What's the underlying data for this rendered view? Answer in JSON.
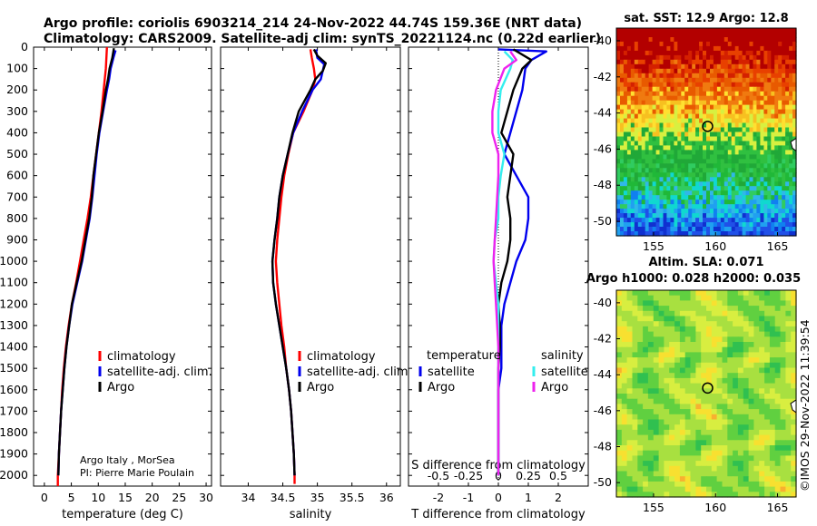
{
  "header": {
    "line1": "Argo profile: coriolis 6903214_214 24-Nov-2022 44.74S 159.36E (NRT data)",
    "line2": "Climatology: CARS2009. Satellite-adj clim: synTS_20221124.nc (0.22d earlier)"
  },
  "credits": {
    "line1": "Argo Italy , MorSea",
    "line2": "PI: Pierre Marie Poulain"
  },
  "imos_stamp": "©IMOS 29-Nov-2022 11:39:54",
  "colors": {
    "climatology": "#ff0000",
    "satellite": "#0000ee",
    "argo": "#000000",
    "sat_salinity": "#33eeee",
    "argo_salinity": "#ee22ee"
  },
  "chart_data": [
    {
      "type": "line",
      "xlabel": "temperature (deg C)",
      "x_ticks": [
        "0",
        "5",
        "10",
        "15",
        "20",
        "25",
        "30"
      ],
      "xlim": [
        -2,
        31
      ],
      "ylim": [
        0,
        2050
      ],
      "y_ticks": [
        "0",
        "100",
        "200",
        "300",
        "400",
        "500",
        "600",
        "700",
        "800",
        "900",
        "1000",
        "1100",
        "1200",
        "1300",
        "1400",
        "1500",
        "1600",
        "1700",
        "1800",
        "1900",
        "2000"
      ],
      "y_reversed": true,
      "legend": [
        "climatology",
        "satellite-adj. clim.",
        "Argo"
      ],
      "series": [
        {
          "name": "climatology",
          "color": "#ff0000",
          "values": [
            [
              11.6,
              0
            ],
            [
              11.5,
              50
            ],
            [
              11.4,
              100
            ],
            [
              11.2,
              150
            ],
            [
              11.0,
              200
            ],
            [
              10.6,
              300
            ],
            [
              10.1,
              400
            ],
            [
              9.6,
              500
            ],
            [
              9.1,
              600
            ],
            [
              8.6,
              700
            ],
            [
              8.0,
              800
            ],
            [
              7.3,
              900
            ],
            [
              6.6,
              1000
            ],
            [
              5.9,
              1100
            ],
            [
              5.1,
              1200
            ],
            [
              4.5,
              1300
            ],
            [
              4.0,
              1400
            ],
            [
              3.6,
              1500
            ],
            [
              3.3,
              1600
            ],
            [
              3.1,
              1700
            ],
            [
              2.9,
              1800
            ],
            [
              2.7,
              1900
            ],
            [
              2.5,
              2000
            ],
            [
              2.5,
              2050
            ]
          ]
        },
        {
          "name": "satellite-adj. clim.",
          "color": "#0000ee",
          "values": [
            [
              13.2,
              15
            ],
            [
              12.8,
              50
            ],
            [
              12.3,
              100
            ],
            [
              12.0,
              150
            ],
            [
              11.6,
              200
            ],
            [
              10.9,
              300
            ],
            [
              10.2,
              400
            ],
            [
              9.7,
              500
            ],
            [
              9.3,
              600
            ],
            [
              8.9,
              700
            ],
            [
              8.4,
              800
            ],
            [
              7.7,
              900
            ],
            [
              7.0,
              1000
            ],
            [
              6.1,
              1100
            ],
            [
              5.2,
              1200
            ],
            [
              4.6,
              1300
            ],
            [
              4.1,
              1400
            ],
            [
              3.7,
              1500
            ],
            [
              3.4,
              1600
            ],
            [
              3.1,
              1700
            ],
            [
              2.9,
              1800
            ],
            [
              2.7,
              1900
            ],
            [
              2.6,
              2000
            ]
          ]
        },
        {
          "name": "Argo",
          "color": "#000000",
          "values": [
            [
              12.9,
              5
            ],
            [
              12.6,
              50
            ],
            [
              12.1,
              100
            ],
            [
              11.8,
              150
            ],
            [
              11.4,
              200
            ],
            [
              10.8,
              300
            ],
            [
              10.1,
              400
            ],
            [
              9.6,
              500
            ],
            [
              9.1,
              600
            ],
            [
              8.8,
              700
            ],
            [
              8.3,
              800
            ],
            [
              7.6,
              900
            ],
            [
              6.9,
              1000
            ],
            [
              6.0,
              1100
            ],
            [
              5.1,
              1200
            ],
            [
              4.6,
              1300
            ],
            [
              4.1,
              1400
            ],
            [
              3.7,
              1500
            ],
            [
              3.4,
              1600
            ],
            [
              3.1,
              1700
            ],
            [
              2.9,
              1800
            ],
            [
              2.7,
              1900
            ],
            [
              2.6,
              2000
            ]
          ]
        }
      ]
    },
    {
      "type": "line",
      "xlabel": "salinity",
      "x_ticks": [
        "34",
        "34.5",
        "35",
        "35.5",
        "36"
      ],
      "xlim": [
        33.6,
        36.2
      ],
      "ylim": [
        0,
        2050
      ],
      "y_reversed": true,
      "legend": [
        "climatology",
        "satellite-adj. clim.",
        "Argo"
      ],
      "series": [
        {
          "name": "climatology",
          "color": "#ff0000",
          "values": [
            [
              34.9,
              10
            ],
            [
              34.92,
              50
            ],
            [
              34.95,
              100
            ],
            [
              34.97,
              150
            ],
            [
              34.93,
              200
            ],
            [
              34.8,
              300
            ],
            [
              34.65,
              400
            ],
            [
              34.58,
              500
            ],
            [
              34.52,
              600
            ],
            [
              34.48,
              700
            ],
            [
              34.45,
              800
            ],
            [
              34.42,
              900
            ],
            [
              34.4,
              1000
            ],
            [
              34.42,
              1100
            ],
            [
              34.45,
              1200
            ],
            [
              34.48,
              1300
            ],
            [
              34.52,
              1400
            ],
            [
              34.55,
              1500
            ],
            [
              34.59,
              1600
            ],
            [
              34.62,
              1700
            ],
            [
              34.64,
              1800
            ],
            [
              34.66,
              1900
            ],
            [
              34.67,
              2000
            ],
            [
              34.67,
              2040
            ]
          ]
        },
        {
          "name": "satellite-adj. clim.",
          "color": "#0000ee",
          "values": [
            [
              34.98,
              10
            ],
            [
              35.0,
              50
            ],
            [
              35.1,
              80
            ],
            [
              35.05,
              150
            ],
            [
              34.93,
              200
            ],
            [
              34.78,
              300
            ],
            [
              34.65,
              400
            ],
            [
              34.57,
              500
            ],
            [
              34.5,
              600
            ],
            [
              34.45,
              700
            ],
            [
              34.42,
              800
            ],
            [
              34.38,
              900
            ],
            [
              34.35,
              1000
            ],
            [
              34.36,
              1100
            ],
            [
              34.4,
              1200
            ],
            [
              34.45,
              1300
            ],
            [
              34.5,
              1400
            ],
            [
              34.55,
              1500
            ],
            [
              34.59,
              1600
            ],
            [
              34.62,
              1700
            ],
            [
              34.64,
              1800
            ],
            [
              34.66,
              1900
            ],
            [
              34.67,
              2000
            ]
          ]
        },
        {
          "name": "Argo",
          "color": "#000000",
          "values": [
            [
              34.95,
              10
            ],
            [
              35.0,
              40
            ],
            [
              35.12,
              75
            ],
            [
              35.08,
              110
            ],
            [
              34.97,
              150
            ],
            [
              34.9,
              200
            ],
            [
              34.73,
              300
            ],
            [
              34.64,
              400
            ],
            [
              34.57,
              500
            ],
            [
              34.5,
              600
            ],
            [
              34.45,
              700
            ],
            [
              34.42,
              800
            ],
            [
              34.38,
              900
            ],
            [
              34.35,
              1000
            ],
            [
              34.36,
              1100
            ],
            [
              34.4,
              1200
            ],
            [
              34.45,
              1300
            ],
            [
              34.5,
              1400
            ],
            [
              34.55,
              1500
            ],
            [
              34.59,
              1600
            ],
            [
              34.62,
              1700
            ],
            [
              34.64,
              1800
            ],
            [
              34.66,
              1900
            ],
            [
              34.67,
              2000
            ]
          ]
        }
      ]
    },
    {
      "type": "line",
      "xlabel": "T difference from climatology",
      "x_ticks": [
        "-2",
        "-1",
        "0",
        "1",
        "2"
      ],
      "xlim": [
        -3,
        3
      ],
      "x2label": "S difference from climatology",
      "x2_ticks": [
        "-0.5",
        "-0.25",
        "0",
        "0.25",
        "0.5"
      ],
      "x2lim": [
        -0.75,
        0.75
      ],
      "ylim": [
        0,
        2050
      ],
      "y_reversed": true,
      "legend_temperature_title": "temperature",
      "legend_salinity_title": "salinity",
      "legend": [
        "satellite",
        "Argo"
      ],
      "series": [
        {
          "name": "temperature satellite",
          "color": "#0000ee",
          "values": [
            [
              0,
              10
            ],
            [
              1.6,
              20
            ],
            [
              1.1,
              60
            ],
            [
              0.9,
              100
            ],
            [
              0.8,
              200
            ],
            [
              0.6,
              300
            ],
            [
              0.4,
              400
            ],
            [
              0.2,
              500
            ],
            [
              0.6,
              600
            ],
            [
              1.0,
              700
            ],
            [
              1.0,
              800
            ],
            [
              0.9,
              900
            ],
            [
              0.6,
              1000
            ],
            [
              0.4,
              1100
            ],
            [
              0.2,
              1200
            ],
            [
              0.1,
              1300
            ],
            [
              0.1,
              1400
            ],
            [
              0.1,
              1500
            ],
            [
              0,
              1600
            ],
            [
              0,
              1700
            ],
            [
              0,
              1800
            ],
            [
              0,
              1900
            ],
            [
              0,
              2000
            ]
          ]
        },
        {
          "name": "temperature Argo",
          "color": "#000000",
          "values": [
            [
              0.5,
              10
            ],
            [
              1.1,
              60
            ],
            [
              0.8,
              100
            ],
            [
              0.5,
              200
            ],
            [
              0.3,
              300
            ],
            [
              0.1,
              400
            ],
            [
              0.5,
              500
            ],
            [
              0.4,
              600
            ],
            [
              0.3,
              700
            ],
            [
              0.4,
              800
            ],
            [
              0.4,
              900
            ],
            [
              0.3,
              1000
            ],
            [
              0.1,
              1100
            ],
            [
              0,
              1200
            ],
            [
              0.05,
              1300
            ],
            [
              0.05,
              1400
            ],
            [
              0,
              1500
            ],
            [
              0,
              1600
            ],
            [
              0,
              1700
            ],
            [
              0,
              1800
            ],
            [
              0,
              1900
            ],
            [
              0,
              2000
            ]
          ]
        },
        {
          "name": "salinity satellite",
          "color": "#33eeee",
          "values": [
            [
              0.05,
              20
            ],
            [
              0.12,
              60
            ],
            [
              0.1,
              100
            ],
            [
              0.02,
              200
            ],
            [
              0,
              300
            ],
            [
              0,
              400
            ],
            [
              0.05,
              500
            ],
            [
              0.02,
              600
            ],
            [
              0,
              700
            ],
            [
              0,
              800
            ],
            [
              -0.03,
              900
            ],
            [
              -0.04,
              1000
            ],
            [
              -0.02,
              1100
            ],
            [
              0,
              1200
            ],
            [
              0,
              1300
            ],
            [
              0,
              1400
            ],
            [
              0,
              1500
            ],
            [
              0,
              1600
            ],
            [
              0,
              1700
            ],
            [
              0,
              1800
            ],
            [
              0,
              1900
            ],
            [
              0,
              2000
            ]
          ]
        },
        {
          "name": "salinity Argo",
          "color": "#ee22ee",
          "values": [
            [
              0.1,
              20
            ],
            [
              0.15,
              60
            ],
            [
              0.05,
              100
            ],
            [
              -0.02,
              200
            ],
            [
              -0.05,
              300
            ],
            [
              -0.05,
              400
            ],
            [
              0,
              500
            ],
            [
              0,
              600
            ],
            [
              -0.01,
              700
            ],
            [
              -0.02,
              800
            ],
            [
              -0.03,
              900
            ],
            [
              -0.04,
              1000
            ],
            [
              -0.03,
              1100
            ],
            [
              -0.02,
              1200
            ],
            [
              -0.01,
              1300
            ],
            [
              0,
              1400
            ],
            [
              0,
              1500
            ],
            [
              0,
              1600
            ],
            [
              0,
              1700
            ],
            [
              0,
              1800
            ],
            [
              0,
              1900
            ],
            [
              0,
              2000
            ]
          ]
        }
      ]
    },
    {
      "type": "heatmap",
      "title": "sat. SST: 12.9 Argo: 12.8",
      "x_ticks": [
        "155",
        "160",
        "165"
      ],
      "y_ticks": [
        "-40",
        "-42",
        "-44",
        "-46",
        "-48",
        "-50"
      ],
      "xlim": [
        152,
        166.5
      ],
      "ylim": [
        -50.8,
        -39.3
      ],
      "marker": {
        "lon": 159.36,
        "lat": -44.74
      }
    },
    {
      "type": "heatmap",
      "title": "Altim. SLA: 0.071",
      "subtitle": "Argo h1000: 0.028 h2000: 0.035",
      "x_ticks": [
        "155",
        "160",
        "165"
      ],
      "y_ticks": [
        "-40",
        "-42",
        "-44",
        "-46",
        "-48",
        "-50"
      ],
      "xlim": [
        152,
        166.5
      ],
      "ylim": [
        -50.8,
        -39.3
      ],
      "marker": {
        "lon": 159.36,
        "lat": -44.74
      }
    }
  ]
}
